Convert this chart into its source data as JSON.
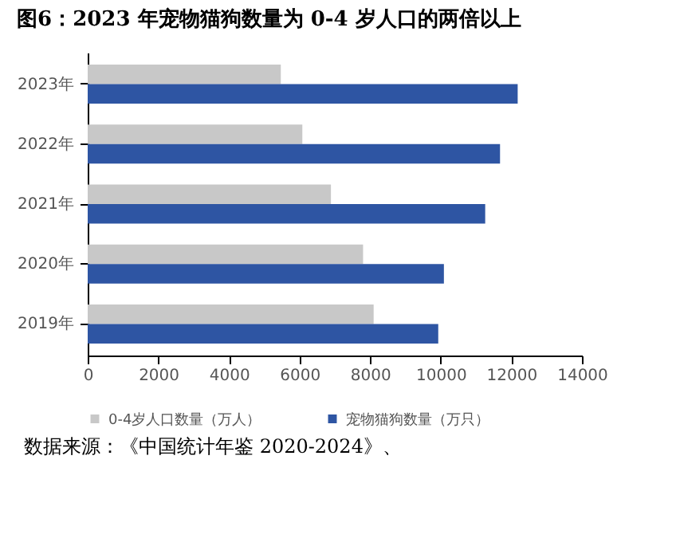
{
  "chart_data": {
    "type": "bar",
    "orientation": "horizontal",
    "title": "图6：2023 年宠物猫狗数量为 0-4 岁人口的两倍以上",
    "categories": [
      "2023年",
      "2022年",
      "2021年",
      "2020年",
      "2019年"
    ],
    "series": [
      {
        "name": "0-4岁人口数量（万人）",
        "color": "#c8c8c8",
        "values": [
          5470,
          6080,
          6890,
          7800,
          8100
        ]
      },
      {
        "name": "宠物猫狗数量（万只）",
        "color": "#2e55a3",
        "values": [
          12180,
          11680,
          11260,
          10090,
          9930
        ]
      }
    ],
    "xlim": [
      0,
      14000
    ],
    "xticks": [
      0,
      2000,
      4000,
      6000,
      8000,
      10000,
      12000,
      14000
    ],
    "grid": false,
    "legend": "bottom",
    "annotations": [
      "数据来源：《中国统计年鉴 2020-2024》、"
    ]
  }
}
